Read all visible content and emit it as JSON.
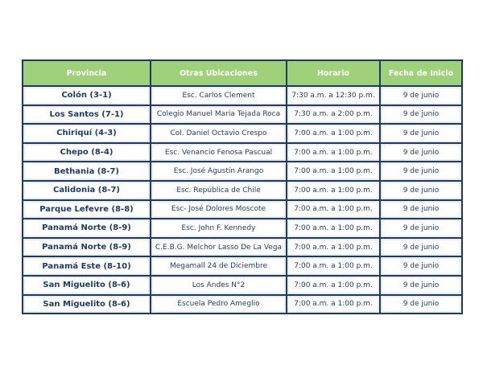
{
  "table": {
    "headers": [
      "Provincia",
      "Otras Ubicaciones",
      "Horario",
      "Fecha de Inicio"
    ],
    "rows": [
      [
        "Colón (3-1)",
        "Esc. Carlos Clement",
        "7:30 a.m. a 12:30 p.m.",
        "9 de junio"
      ],
      [
        "Los Santos (7-1)",
        "Colegio Manuel María Tejada Roca",
        "7:30 a.m. a 2:00 p.m.",
        "9 de junio"
      ],
      [
        "Chiriquí (4-3)",
        "Col. Daniel Octavio Crespo",
        "7:00 a.m. a 1:00 p.m.",
        "9 de junio"
      ],
      [
        "Chepo (8-4)",
        "Esc. Venancio Fenosa Pascual",
        "7:00 a.m. a 1:00 p.m.",
        "9 de junio"
      ],
      [
        "Bethania (8-7)",
        "Esc. José Agustín Arango",
        "7:00 a.m. a 1:00 p.m.",
        "9 de junio"
      ],
      [
        "Calidonia (8-7)",
        "Esc. República de Chile",
        "7:00 a.m. a 1:00 p.m.",
        "9 de junio"
      ],
      [
        "Parque Lefevre (8-8)",
        "Esc- José Dolores Moscote",
        "7:00 a.m. a 1:00 p.m.",
        "9 de junio"
      ],
      [
        "Panamá Norte (8-9)",
        "Esc. John F. Kennedy",
        "7:00 a.m. a 1:00 p.m.",
        "9 de junio"
      ],
      [
        "Panamá Norte (8-9)",
        "C.E.B.G. Melchor Lasso De La Vega",
        "7:00 a.m. a 1:00 p.m.",
        "9 de junio"
      ],
      [
        "Panamá Este (8-10)",
        "Megamall 24 de Diciembre",
        "7:00 a.m. a 1:00 p.m.",
        "9 de junio"
      ],
      [
        "San Miguelito (8-6)",
        "Los Andes N°2",
        "7:00 a.m. a 1:00 p.m.",
        "9 de junio"
      ],
      [
        "San Miguelito (8-6)",
        "Escuela Pedro Ameglio",
        "7:00 a.m. a 1:00 p.m.",
        "9 de junio"
      ]
    ]
  }
}
